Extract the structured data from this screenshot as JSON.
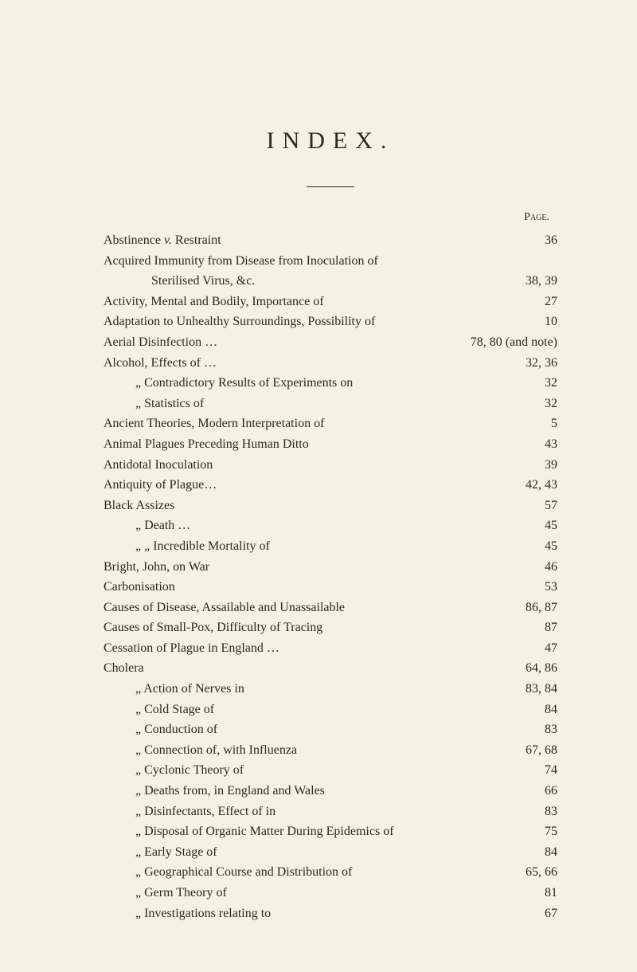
{
  "title": "INDEX.",
  "page_label": "Page.",
  "entries": [
    {
      "text": "Abstinence <i>v.</i> Restraint",
      "indent": 0,
      "page": "36"
    },
    {
      "text": "Acquired Immunity from Disease from Inoculation of",
      "indent": 0,
      "page": ""
    },
    {
      "text": "Sterilised Virus, &c.",
      "indent": 2,
      "page": "38, 39"
    },
    {
      "text": "Activity, Mental and Bodily, Importance of",
      "indent": 0,
      "page": "27"
    },
    {
      "text": "Adaptation to Unhealthy Surroundings, Possibility of",
      "indent": 0,
      "page": "10"
    },
    {
      "text": "Aerial Disinfection …",
      "indent": 0,
      "page": "78, 80 (and note)"
    },
    {
      "text": "Alcohol, Effects of …",
      "indent": 0,
      "page": "32, 36"
    },
    {
      "text": "„       Contradictory Results of Experiments on",
      "indent": 1,
      "page": "32"
    },
    {
      "text": "„       Statistics of",
      "indent": 1,
      "page": "32"
    },
    {
      "text": "Ancient Theories, Modern Interpretation of",
      "indent": 0,
      "page": "5"
    },
    {
      "text": "Animal Plagues Preceding Human Ditto",
      "indent": 0,
      "page": "43"
    },
    {
      "text": "Antidotal Inoculation",
      "indent": 0,
      "page": "39"
    },
    {
      "text": "Antiquity of Plague…",
      "indent": 0,
      "page": "42, 43"
    },
    {
      "text": "Black Assizes",
      "indent": 0,
      "page": "57"
    },
    {
      "text": "„     Death …",
      "indent": 1,
      "page": "45"
    },
    {
      "text": "„     „   Incredible Mortality of",
      "indent": 1,
      "page": "45"
    },
    {
      "text": "Bright, John, on War",
      "indent": 0,
      "page": "46"
    },
    {
      "text": "Carbonisation",
      "indent": 0,
      "page": "53"
    },
    {
      "text": "Causes of Disease, Assailable and Unassailable",
      "indent": 0,
      "page": "86, 87"
    },
    {
      "text": "Causes of Small-Pox, Difficulty of Tracing",
      "indent": 0,
      "page": "87"
    },
    {
      "text": "Cessation of Plague in England …",
      "indent": 0,
      "page": "47"
    },
    {
      "text": "Cholera",
      "indent": 0,
      "page": "64, 86"
    },
    {
      "text": "„     Action of Nerves in",
      "indent": 1,
      "page": "83, 84"
    },
    {
      "text": "„     Cold Stage of",
      "indent": 1,
      "page": "84"
    },
    {
      "text": "„     Conduction of",
      "indent": 1,
      "page": "83"
    },
    {
      "text": "„     Connection of, with Influenza",
      "indent": 1,
      "page": "67, 68"
    },
    {
      "text": "„     Cyclonic Theory of",
      "indent": 1,
      "page": "74"
    },
    {
      "text": "„     Deaths from, in England and Wales",
      "indent": 1,
      "page": "66"
    },
    {
      "text": "„     Disinfectants, Effect of in",
      "indent": 1,
      "page": "83"
    },
    {
      "text": "„     Disposal of Organic Matter During Epidemics of",
      "indent": 1,
      "page": "75"
    },
    {
      "text": "„     Early Stage of",
      "indent": 1,
      "page": "84"
    },
    {
      "text": "„     Geographical Course and Distribution of",
      "indent": 1,
      "page": "65, 66"
    },
    {
      "text": "„     Germ Theory of",
      "indent": 1,
      "page": "81"
    },
    {
      "text": "„     Investigations relating to",
      "indent": 1,
      "page": "67"
    }
  ]
}
